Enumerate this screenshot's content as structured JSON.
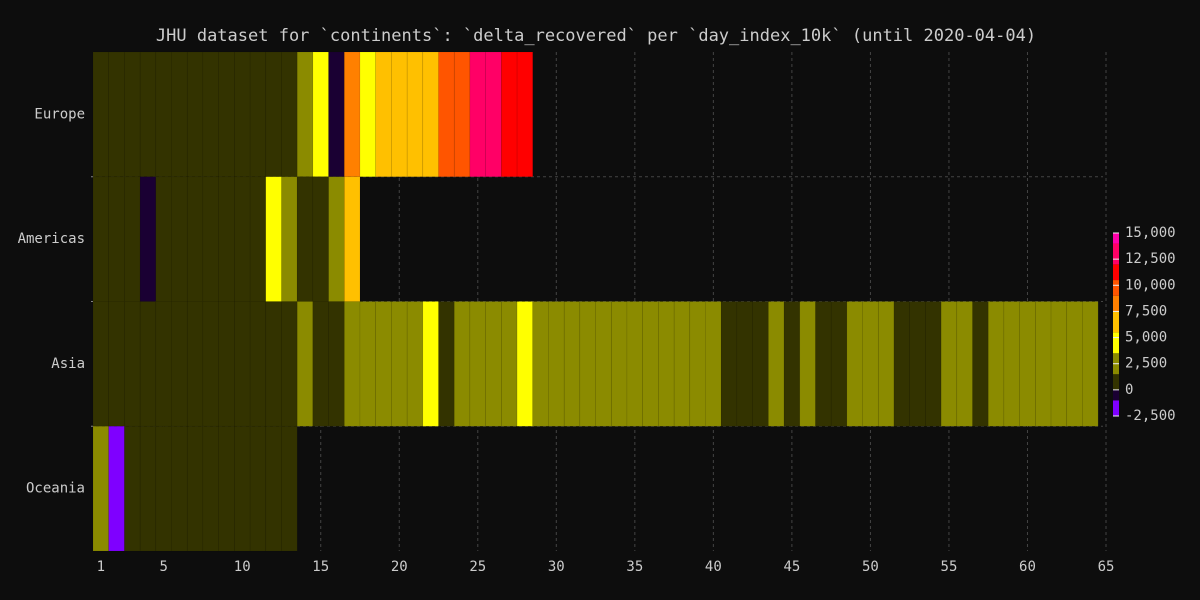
{
  "chart_data": {
    "type": "heatmap",
    "title": "JHU dataset for `continents`: `delta_recovered` per `day_index_10k` (until 2020-04-04)",
    "categories": [
      "Europe",
      "Americas",
      "Asia",
      "Oceania"
    ],
    "x": [
      1,
      2,
      3,
      4,
      5,
      6,
      7,
      8,
      9,
      10,
      11,
      12,
      13,
      14,
      15,
      16,
      17,
      18,
      19,
      20,
      21,
      22,
      23,
      24,
      25,
      26,
      27,
      28,
      29,
      30,
      31,
      32,
      33,
      34,
      35,
      36,
      37,
      38,
      39,
      40,
      41,
      42,
      43,
      44,
      45,
      46,
      47,
      48,
      49,
      50,
      51,
      52,
      53,
      54,
      55,
      56,
      57,
      58,
      59,
      60,
      61,
      62,
      63,
      64
    ],
    "z": [
      [
        200,
        200,
        200,
        200,
        200,
        200,
        200,
        200,
        200,
        200,
        200,
        200,
        200,
        2500,
        4500,
        -500,
        8000,
        4500,
        6500,
        6500,
        6500,
        6500,
        9500,
        9500,
        13000,
        13000,
        11000,
        11000,
        null,
        null,
        null,
        null,
        null,
        null,
        null,
        null,
        null,
        null,
        null,
        null,
        null,
        null,
        null,
        null,
        null,
        null,
        null,
        null,
        null,
        null,
        null,
        null,
        null,
        null,
        null,
        null,
        null,
        null,
        null,
        null,
        null,
        null,
        null,
        null
      ],
      [
        100,
        100,
        100,
        -500,
        100,
        100,
        100,
        100,
        100,
        100,
        100,
        4500,
        2500,
        800,
        800,
        2500,
        6500,
        null,
        null,
        null,
        null,
        null,
        null,
        null,
        null,
        null,
        null,
        null,
        null,
        null,
        null,
        null,
        null,
        null,
        null,
        null,
        null,
        null,
        null,
        null,
        null,
        null,
        null,
        null,
        null,
        null,
        null,
        null,
        null,
        null,
        null,
        null,
        null,
        null,
        null,
        null,
        null,
        null,
        null,
        null,
        null,
        null,
        null,
        null
      ],
      [
        500,
        500,
        500,
        500,
        500,
        500,
        500,
        500,
        500,
        500,
        500,
        500,
        500,
        2500,
        1000,
        1000,
        2500,
        2500,
        2500,
        2500,
        2500,
        4500,
        1000,
        2500,
        2500,
        2500,
        2500,
        4500,
        2500,
        2500,
        2500,
        2500,
        2500,
        2500,
        2500,
        2500,
        2500,
        2500,
        2500,
        2500,
        1000,
        1000,
        1000,
        2500,
        1000,
        2500,
        1000,
        1000,
        2500,
        2500,
        2500,
        1000,
        1000,
        1000,
        2500,
        2500,
        1000,
        2500,
        2500,
        2500,
        2500,
        2500,
        2500,
        2500
      ],
      [
        2500,
        -2000,
        200,
        200,
        200,
        200,
        200,
        200,
        200,
        200,
        200,
        200,
        200,
        null,
        null,
        null,
        null,
        null,
        null,
        null,
        null,
        null,
        null,
        null,
        null,
        null,
        null,
        null,
        null,
        null,
        null,
        null,
        null,
        null,
        null,
        null,
        null,
        null,
        null,
        null,
        null,
        null,
        null,
        null,
        null,
        null,
        null,
        null,
        null,
        null,
        null,
        null,
        null,
        null,
        null,
        null,
        null,
        null,
        null,
        null,
        null,
        null,
        null,
        null
      ]
    ],
    "xlim": [
      0.5,
      65
    ],
    "xticks": [
      1,
      5,
      10,
      15,
      20,
      25,
      30,
      35,
      40,
      45,
      50,
      55,
      60,
      65
    ],
    "grid": true,
    "colorscale": [
      [
        -2500,
        "#7f00ff"
      ],
      [
        -1000,
        "#1a0033"
      ],
      [
        0,
        "#333300"
      ],
      [
        1500,
        "#8b8b00"
      ],
      [
        3500,
        "#ffff00"
      ],
      [
        5500,
        "#ffc000"
      ],
      [
        7500,
        "#ff8000"
      ],
      [
        9000,
        "#ff5500"
      ],
      [
        10500,
        "#ff0000"
      ],
      [
        12000,
        "#ff0066"
      ],
      [
        14000,
        "#ff00aa"
      ]
    ],
    "colorbar_lim": [
      -2500,
      15000
    ],
    "colorbar_ticks": [
      {
        "value": -2500,
        "label": "-2,500"
      },
      0,
      {
        "value": 2500,
        "label": "2,500"
      },
      {
        "value": 5000,
        "label": "5,000"
      },
      {
        "value": 7500,
        "label": "7,500"
      },
      {
        "value": 10000,
        "label": "10,000"
      },
      {
        "value": 12500,
        "label": "12,500"
      },
      {
        "value": 15000,
        "label": "15,000"
      }
    ]
  }
}
